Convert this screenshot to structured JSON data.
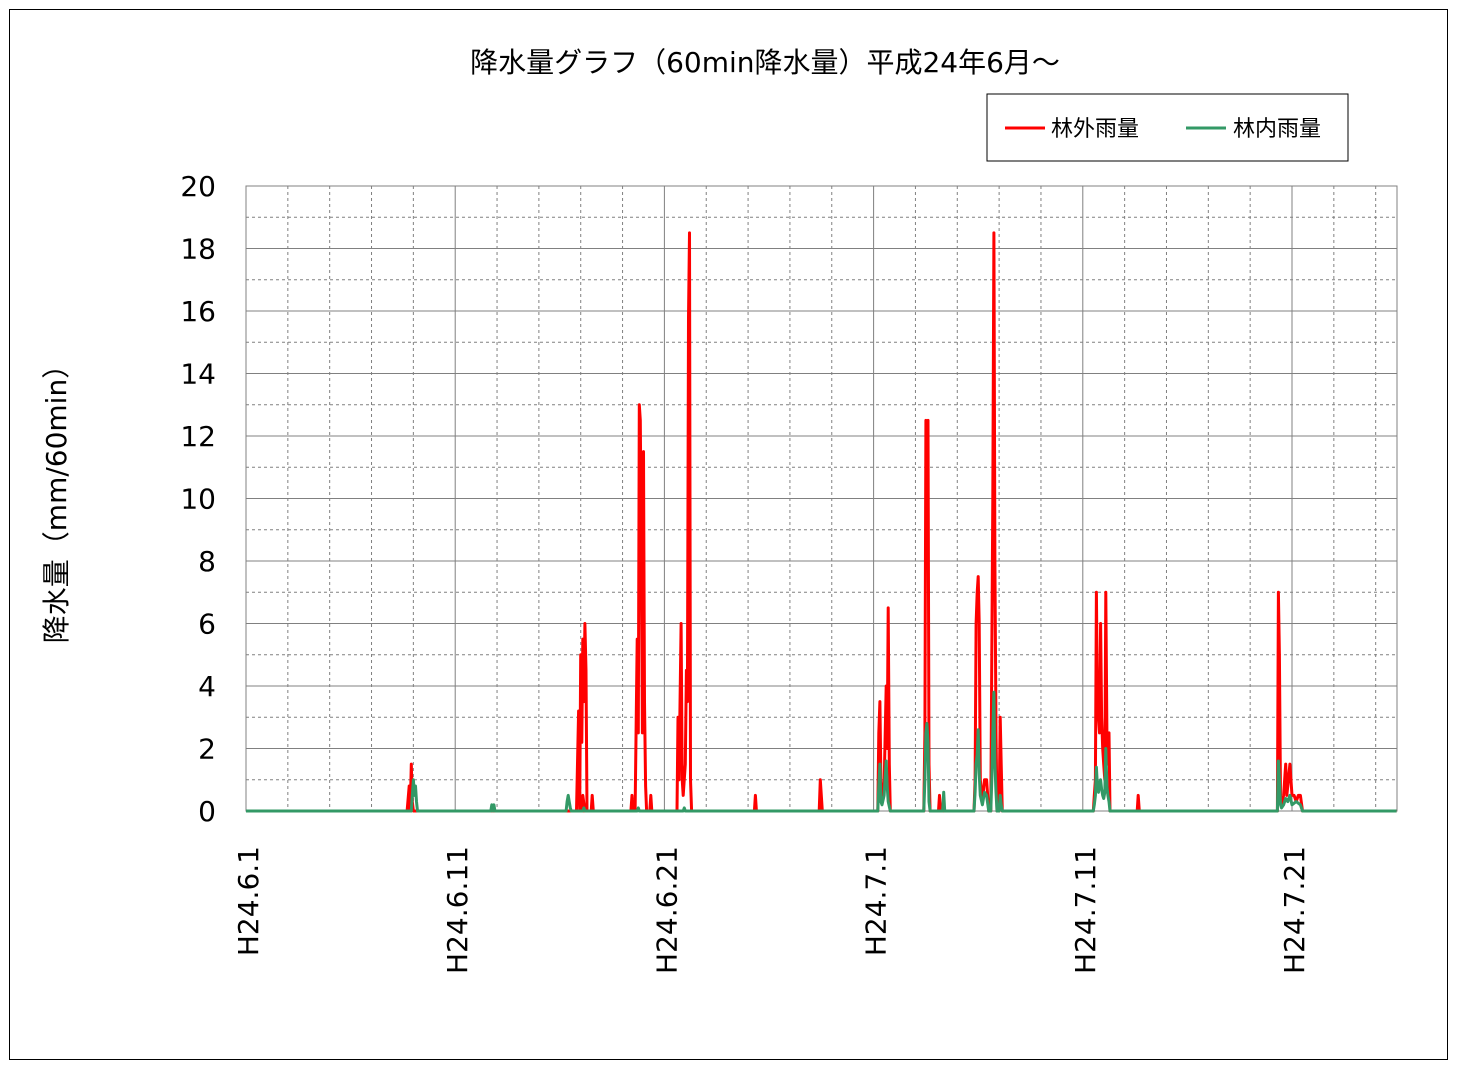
{
  "chart_data": {
    "type": "line",
    "title": "降水量グラフ（60min降水量）平成24年6月～",
    "ylabel": "降水量（mm/60min）",
    "xlabel": "",
    "ylim": [
      0,
      20
    ],
    "yticks": [
      0,
      2,
      4,
      6,
      8,
      10,
      12,
      14,
      16,
      18,
      20
    ],
    "xlim": [
      0,
      55
    ],
    "xticks": [
      {
        "x": 0,
        "label": "H24.6.1"
      },
      {
        "x": 10,
        "label": "H24.6.11"
      },
      {
        "x": 20,
        "label": "H24.6.21"
      },
      {
        "x": 30,
        "label": "H24.7.1"
      },
      {
        "x": 40,
        "label": "H24.7.11"
      },
      {
        "x": 50,
        "label": "H24.7.21"
      }
    ],
    "grid": true,
    "legend_position": "top-right",
    "series": [
      {
        "name": "林外雨量",
        "color": "#ff0000",
        "points": [
          [
            0,
            0
          ],
          [
            7.7,
            0
          ],
          [
            7.8,
            0.8
          ],
          [
            7.85,
            0
          ],
          [
            7.9,
            1.5
          ],
          [
            7.95,
            0.3
          ],
          [
            8.0,
            0
          ],
          [
            16.0,
            0
          ],
          [
            16.1,
            0.5
          ],
          [
            16.2,
            0
          ],
          [
            15.8,
            0
          ],
          [
            15.9,
            3.2
          ],
          [
            15.95,
            0
          ],
          [
            16.0,
            5.0
          ],
          [
            16.05,
            2.2
          ],
          [
            16.1,
            5.5
          ],
          [
            16.15,
            3.5
          ],
          [
            16.2,
            6.0
          ],
          [
            16.25,
            4.5
          ],
          [
            16.3,
            0
          ],
          [
            16.5,
            0
          ],
          [
            16.55,
            0.5
          ],
          [
            16.6,
            0
          ],
          [
            18.4,
            0
          ],
          [
            18.45,
            0.5
          ],
          [
            18.5,
            0
          ],
          [
            18.6,
            0
          ],
          [
            18.7,
            5.5
          ],
          [
            18.75,
            2.5
          ],
          [
            18.8,
            13.0
          ],
          [
            18.85,
            12.5
          ],
          [
            18.9,
            8.0
          ],
          [
            18.95,
            2.5
          ],
          [
            19.0,
            11.5
          ],
          [
            19.05,
            3.5
          ],
          [
            19.1,
            0.8
          ],
          [
            19.15,
            0
          ],
          [
            19.3,
            0
          ],
          [
            19.35,
            0.5
          ],
          [
            19.4,
            0
          ],
          [
            20.6,
            0
          ],
          [
            20.65,
            3.0
          ],
          [
            20.7,
            1.0
          ],
          [
            20.8,
            6.0
          ],
          [
            20.85,
            1.0
          ],
          [
            20.9,
            0.5
          ],
          [
            21.0,
            1.5
          ],
          [
            21.05,
            4.5
          ],
          [
            21.1,
            3.5
          ],
          [
            21.15,
            15.8
          ],
          [
            21.2,
            18.5
          ],
          [
            21.25,
            1.0
          ],
          [
            21.3,
            0
          ],
          [
            24.3,
            0
          ],
          [
            24.35,
            0.5
          ],
          [
            24.4,
            0
          ],
          [
            27.4,
            0
          ],
          [
            27.45,
            1.0
          ],
          [
            27.5,
            0.5
          ],
          [
            27.55,
            0
          ],
          [
            30.2,
            0
          ],
          [
            30.25,
            2.5
          ],
          [
            30.3,
            3.5
          ],
          [
            30.35,
            1.0
          ],
          [
            30.4,
            0.5
          ],
          [
            30.5,
            0.8
          ],
          [
            30.6,
            4.0
          ],
          [
            30.65,
            2.0
          ],
          [
            30.7,
            6.5
          ],
          [
            30.75,
            1.5
          ],
          [
            30.8,
            0
          ],
          [
            32.4,
            0
          ],
          [
            32.45,
            2.5
          ],
          [
            32.5,
            12.5
          ],
          [
            32.55,
            12.0
          ],
          [
            32.6,
            12.5
          ],
          [
            32.65,
            1.5
          ],
          [
            32.7,
            0
          ],
          [
            33.1,
            0
          ],
          [
            33.15,
            0.5
          ],
          [
            33.2,
            0
          ],
          [
            34.8,
            0
          ],
          [
            34.85,
            1.0
          ],
          [
            34.9,
            6.0
          ],
          [
            34.95,
            7.0
          ],
          [
            35.0,
            7.5
          ],
          [
            35.05,
            6.0
          ],
          [
            35.1,
            1.0
          ],
          [
            35.2,
            0.3
          ],
          [
            35.3,
            1.0
          ],
          [
            35.4,
            1.0
          ],
          [
            35.5,
            0
          ],
          [
            35.6,
            0
          ],
          [
            35.65,
            5.0
          ],
          [
            35.7,
            10.0
          ],
          [
            35.75,
            18.5
          ],
          [
            35.8,
            8.0
          ],
          [
            35.85,
            2.5
          ],
          [
            35.9,
            0
          ],
          [
            36.0,
            0
          ],
          [
            36.05,
            3.0
          ],
          [
            36.1,
            1.5
          ],
          [
            36.15,
            0
          ],
          [
            40.5,
            0
          ],
          [
            40.55,
            0.5
          ],
          [
            40.6,
            1.0
          ],
          [
            40.65,
            7.0
          ],
          [
            40.7,
            3.5
          ],
          [
            40.75,
            3.0
          ],
          [
            40.8,
            2.5
          ],
          [
            40.85,
            6.0
          ],
          [
            40.9,
            3.0
          ],
          [
            40.95,
            2.0
          ],
          [
            41.0,
            1.5
          ],
          [
            41.05,
            1.0
          ],
          [
            41.1,
            7.0
          ],
          [
            41.15,
            2.5
          ],
          [
            41.2,
            1.5
          ],
          [
            41.25,
            2.5
          ],
          [
            41.3,
            0
          ],
          [
            42.6,
            0
          ],
          [
            42.65,
            0.5
          ],
          [
            42.7,
            0
          ],
          [
            49.3,
            0
          ],
          [
            49.35,
            7.0
          ],
          [
            49.4,
            5.0
          ],
          [
            49.45,
            0.5
          ],
          [
            49.5,
            0.2
          ],
          [
            49.6,
            0.5
          ],
          [
            49.7,
            1.5
          ],
          [
            49.75,
            0.5
          ],
          [
            49.8,
            0.8
          ],
          [
            49.9,
            1.5
          ],
          [
            50.0,
            0.5
          ],
          [
            50.1,
            0.5
          ],
          [
            50.2,
            0.3
          ],
          [
            50.3,
            0.5
          ],
          [
            50.4,
            0.5
          ],
          [
            50.5,
            0
          ],
          [
            55,
            0
          ]
        ]
      },
      {
        "name": "林内雨量",
        "color": "#339966",
        "points": [
          [
            0,
            0
          ],
          [
            7.9,
            0
          ],
          [
            7.95,
            0.5
          ],
          [
            8.0,
            1.0
          ],
          [
            8.05,
            0.5
          ],
          [
            8.1,
            0.8
          ],
          [
            8.15,
            0.3
          ],
          [
            8.2,
            0
          ],
          [
            11.7,
            0
          ],
          [
            11.75,
            0.2
          ],
          [
            11.8,
            0
          ],
          [
            11.85,
            0.2
          ],
          [
            11.9,
            0
          ],
          [
            15.3,
            0
          ],
          [
            15.35,
            0.3
          ],
          [
            15.4,
            0.5
          ],
          [
            15.45,
            0.3
          ],
          [
            15.5,
            0.1
          ],
          [
            15.55,
            0
          ],
          [
            16.1,
            0
          ],
          [
            16.15,
            0.1
          ],
          [
            16.2,
            0
          ],
          [
            18.7,
            0
          ],
          [
            18.75,
            0.1
          ],
          [
            18.8,
            0
          ],
          [
            20.9,
            0
          ],
          [
            20.95,
            0.1
          ],
          [
            21.0,
            0
          ],
          [
            30.2,
            0
          ],
          [
            30.25,
            0.8
          ],
          [
            30.3,
            1.5
          ],
          [
            30.35,
            0.3
          ],
          [
            30.4,
            0.2
          ],
          [
            30.5,
            0.5
          ],
          [
            30.6,
            1.6
          ],
          [
            30.65,
            0.8
          ],
          [
            30.7,
            0.3
          ],
          [
            30.8,
            0
          ],
          [
            32.4,
            0
          ],
          [
            32.45,
            1.0
          ],
          [
            32.5,
            2.5
          ],
          [
            32.55,
            2.8
          ],
          [
            32.6,
            2.2
          ],
          [
            32.65,
            0.3
          ],
          [
            32.7,
            0
          ],
          [
            33.3,
            0
          ],
          [
            33.35,
            0.6
          ],
          [
            33.4,
            0
          ],
          [
            34.8,
            0
          ],
          [
            34.85,
            0.6
          ],
          [
            34.9,
            1.5
          ],
          [
            34.95,
            1.8
          ],
          [
            35.0,
            2.6
          ],
          [
            35.05,
            1.2
          ],
          [
            35.1,
            0.5
          ],
          [
            35.2,
            0.2
          ],
          [
            35.3,
            0.6
          ],
          [
            35.4,
            0.5
          ],
          [
            35.5,
            0
          ],
          [
            35.6,
            0
          ],
          [
            35.65,
            1.0
          ],
          [
            35.7,
            2.5
          ],
          [
            35.75,
            3.8
          ],
          [
            35.8,
            1.5
          ],
          [
            35.85,
            0.6
          ],
          [
            35.9,
            0
          ],
          [
            36.0,
            0
          ],
          [
            36.05,
            0.5
          ],
          [
            36.1,
            0.2
          ],
          [
            36.15,
            0
          ],
          [
            40.5,
            0
          ],
          [
            40.55,
            0.2
          ],
          [
            40.6,
            0.5
          ],
          [
            40.65,
            1.4
          ],
          [
            40.7,
            0.8
          ],
          [
            40.75,
            0.6
          ],
          [
            40.8,
            0.9
          ],
          [
            40.85,
            1.0
          ],
          [
            40.9,
            0.7
          ],
          [
            40.95,
            0.5
          ],
          [
            41.0,
            0.4
          ],
          [
            41.05,
            0.6
          ],
          [
            41.1,
            2.0
          ],
          [
            41.15,
            0.8
          ],
          [
            41.2,
            0.5
          ],
          [
            41.25,
            0.3
          ],
          [
            41.3,
            0
          ],
          [
            49.3,
            0
          ],
          [
            49.35,
            1.6
          ],
          [
            49.4,
            1.0
          ],
          [
            49.45,
            0.2
          ],
          [
            49.5,
            0.1
          ],
          [
            49.6,
            0.2
          ],
          [
            49.7,
            0.4
          ],
          [
            49.8,
            0.3
          ],
          [
            49.9,
            0.5
          ],
          [
            50.0,
            0.2
          ],
          [
            50.2,
            0.3
          ],
          [
            50.4,
            0.2
          ],
          [
            50.5,
            0
          ],
          [
            55,
            0
          ]
        ]
      }
    ]
  }
}
